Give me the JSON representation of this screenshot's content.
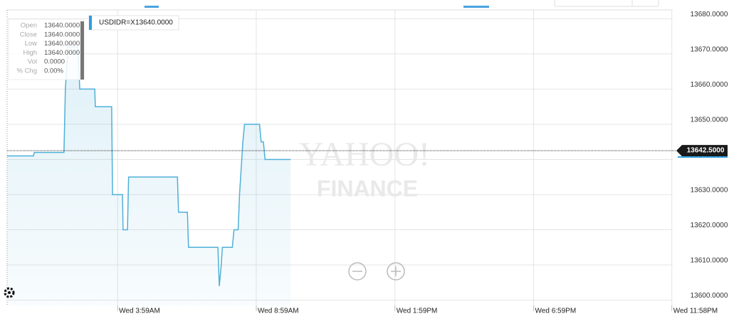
{
  "chart_data": {
    "type": "line",
    "symbol": "USDIDR=X",
    "tooltip_price": "13640.0000",
    "ohlc": [
      {
        "label": "Open",
        "value": "13640.0000"
      },
      {
        "label": "Close",
        "value": "13640.0000"
      },
      {
        "label": "Low",
        "value": "13640.0000"
      },
      {
        "label": "High",
        "value": "13640.0000"
      },
      {
        "label": "Vol",
        "value": "0.0000"
      },
      {
        "label": "% Chg",
        "value": "0.00%"
      }
    ],
    "watermark": [
      "YAHOO!",
      "FINANCE"
    ],
    "x": [
      0,
      0.95,
      0.98,
      2.05,
      2.1,
      2.2,
      2.55,
      2.62,
      3.16,
      3.18,
      3.77,
      3.8,
      4.16,
      4.18,
      4.34,
      4.38,
      6.14,
      6.18,
      6.5,
      6.54,
      7.6,
      7.65,
      7.72,
      7.76,
      8.12,
      8.18,
      8.33,
      8.38,
      8.5,
      8.56,
      9.1,
      9.16,
      9.24,
      9.3,
      10.22
    ],
    "series": [
      {
        "name": "USDIDR=X",
        "color": "#4fb0d8",
        "values": [
          13641,
          13641,
          13642,
          13642,
          13660,
          13672,
          13672,
          13660,
          13660,
          13655,
          13655,
          13630,
          13630,
          13620,
          13620,
          13635,
          13635,
          13625,
          13625,
          13615,
          13615,
          13604,
          13610,
          13615,
          13615,
          13620,
          13620,
          13630,
          13645,
          13650,
          13650,
          13645,
          13645,
          13640,
          13640
        ]
      }
    ],
    "last_price": {
      "value": 13642.5,
      "label": "13642.5000"
    },
    "xlim": [
      0,
      24
    ],
    "xticks": [
      {
        "value": 3.9833,
        "label": "Wed 3:59AM"
      },
      {
        "value": 8.9833,
        "label": "Wed 8:59AM"
      },
      {
        "value": 13.9833,
        "label": "Wed 1:59PM"
      },
      {
        "value": 18.9833,
        "label": "Wed 6:59PM"
      },
      {
        "value": 23.9667,
        "label": "Wed 11:58PM"
      }
    ],
    "ylim": [
      13598.5,
      13682.5
    ],
    "yticks": [
      {
        "value": 13600,
        "label": "13600.0000"
      },
      {
        "value": 13610,
        "label": "13610.0000"
      },
      {
        "value": 13620,
        "label": "13620.0000"
      },
      {
        "value": 13630,
        "label": "13630.0000"
      },
      {
        "value": 13640,
        "label": "13640.0000"
      },
      {
        "value": 13650,
        "label": "13650.0000"
      },
      {
        "value": 13660,
        "label": "13660.0000"
      },
      {
        "value": 13670,
        "label": "13670.0000"
      },
      {
        "value": 13680,
        "label": "13680.0000"
      }
    ],
    "grid": true
  }
}
